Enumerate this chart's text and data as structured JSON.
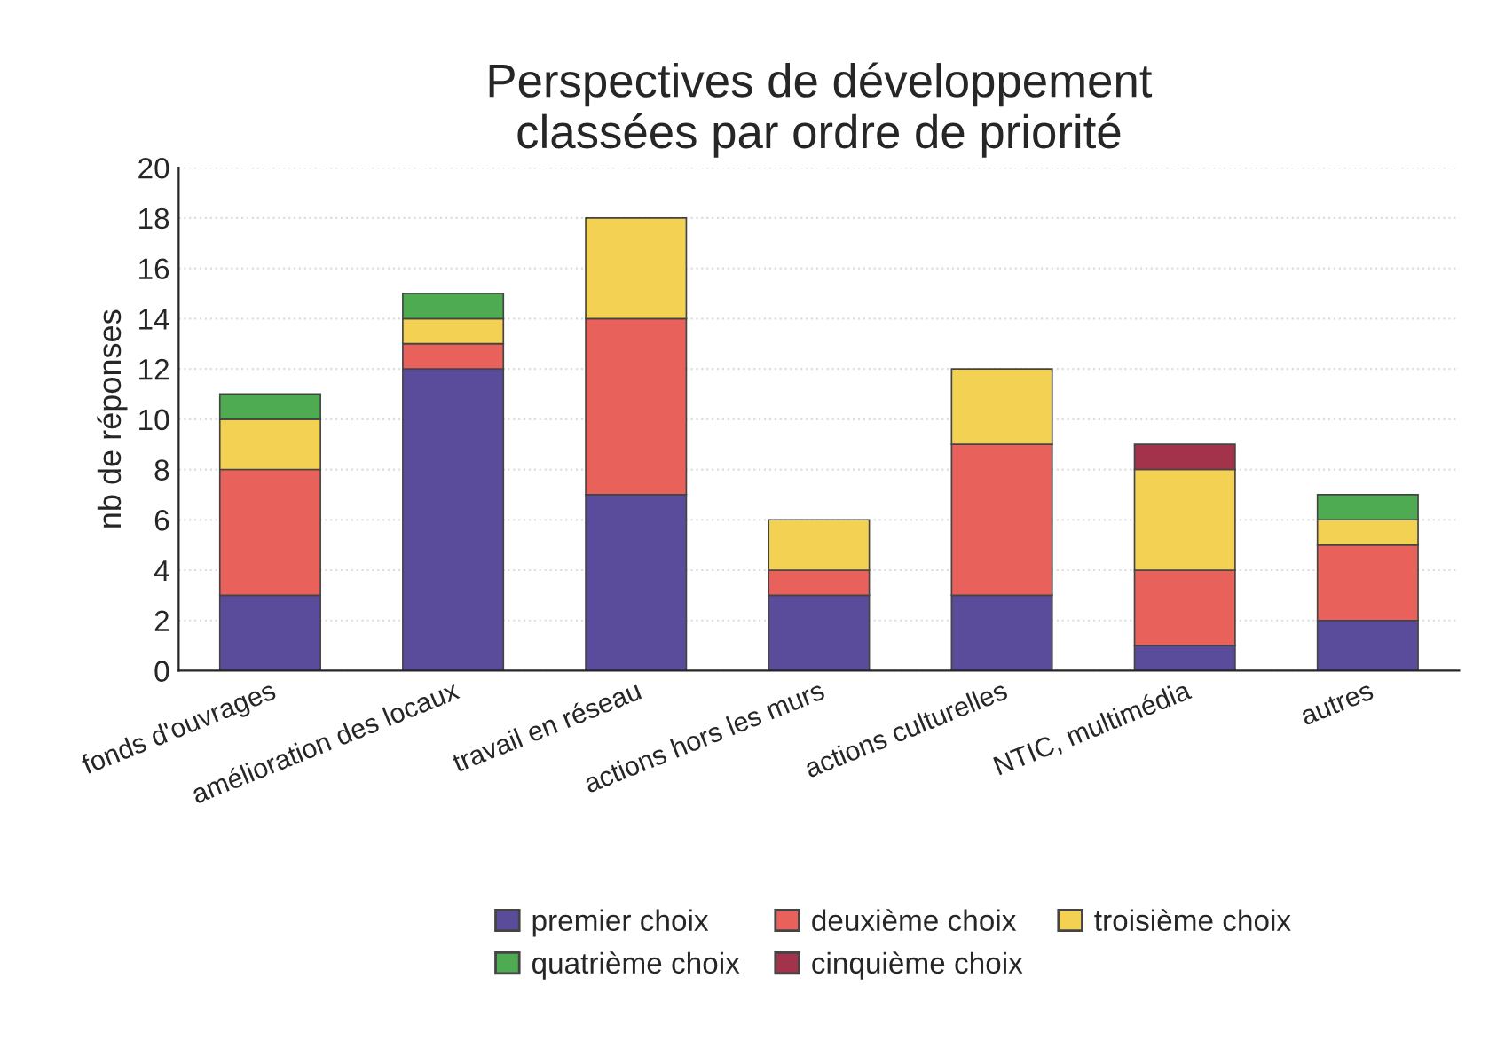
{
  "chart_data": {
    "type": "bar",
    "title": "Perspectives de développement\nclassées par ordre de priorité",
    "ylabel": "nb de réponses",
    "categories": [
      "fonds d'ouvrages",
      "amélioration des locaux",
      "travail en réseau",
      "actions hors les murs",
      "actions culturelles",
      "NTIC, multimédia",
      "autres"
    ],
    "stacked": true,
    "series": [
      {
        "name": "premier choix",
        "color": "#5b4b9b",
        "values": [
          3,
          12,
          7,
          3,
          3,
          1,
          2
        ]
      },
      {
        "name": "deuxième choix",
        "color": "#e8615b",
        "values": [
          5,
          1,
          7,
          1,
          6,
          3,
          3
        ]
      },
      {
        "name": "troisième choix",
        "color": "#f3d152",
        "values": [
          2,
          1,
          4,
          2,
          3,
          4,
          1
        ]
      },
      {
        "name": "quatrième choix",
        "color": "#4fab52",
        "values": [
          1,
          1,
          null,
          null,
          null,
          null,
          1
        ]
      },
      {
        "name": "cinquième choix",
        "color": "#a3324b",
        "values": [
          null,
          null,
          null,
          null,
          null,
          1,
          null
        ]
      }
    ],
    "ylim": [
      0,
      20
    ],
    "yticks": [
      0,
      2,
      4,
      6,
      8,
      10,
      12,
      14,
      16,
      18,
      20
    ],
    "grid": "y",
    "legend": "bottom"
  }
}
